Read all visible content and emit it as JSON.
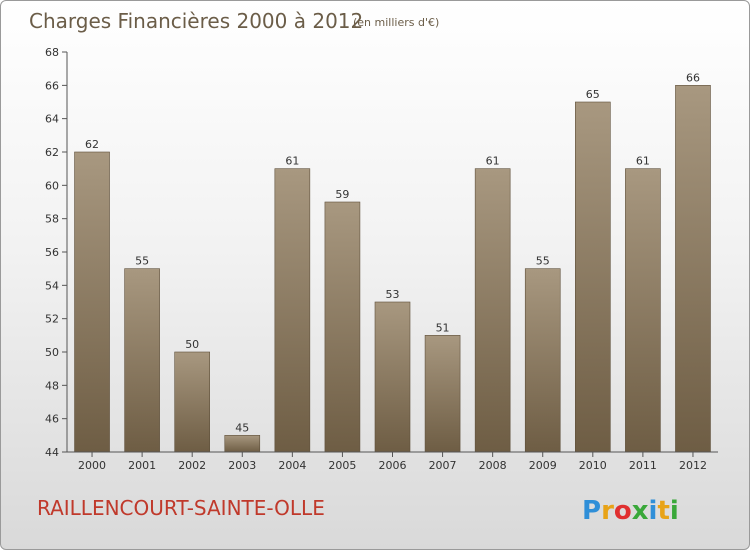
{
  "chart_data": {
    "type": "bar",
    "title": "Charges Financières 2000 à 2012",
    "subtitle": "(en milliers d'€)",
    "categories": [
      "2000",
      "2001",
      "2002",
      "2003",
      "2004",
      "2005",
      "2006",
      "2007",
      "2008",
      "2009",
      "2010",
      "2011",
      "2012"
    ],
    "values": [
      62,
      55,
      50,
      45,
      61,
      59,
      53,
      51,
      61,
      55,
      65,
      61,
      66
    ],
    "ylim": [
      44,
      68
    ],
    "yticks": [
      44,
      46,
      48,
      50,
      52,
      54,
      56,
      58,
      60,
      62,
      64,
      66,
      68
    ],
    "xlabel": "",
    "ylabel": "",
    "grid": false,
    "legend": "none",
    "bar_color_top": "#a89880",
    "bar_color_bottom": "#6e5d44"
  },
  "footer": {
    "commune": "RAILLENCOURT-SAINTE-OLLE",
    "brand_letters": [
      "P",
      "r",
      "o",
      "x",
      "i",
      "t",
      "i"
    ],
    "brand_colors": [
      "#2f8fd8",
      "#e8a317",
      "#e03030",
      "#3aa83a",
      "#2f8fd8",
      "#e8a317",
      "#3aa83a"
    ]
  }
}
